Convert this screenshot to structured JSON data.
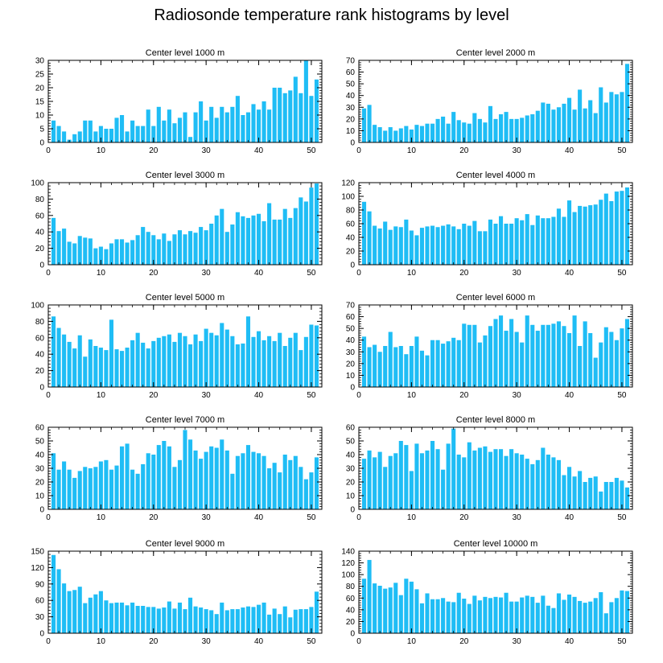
{
  "title": "Radiosonde temperature rank histograms by level",
  "bar_color": "#1fbdf5",
  "chart_data": [
    {
      "type": "bar",
      "title": "Center level 1000 m",
      "xlabel": "",
      "ylabel": "",
      "xlim": [
        0,
        52
      ],
      "ylim": [
        0,
        30
      ],
      "xticks": [
        0,
        10,
        20,
        30,
        40,
        50
      ],
      "yticks": [
        0,
        5,
        10,
        15,
        20,
        25,
        30
      ],
      "values": [
        8,
        6,
        4,
        1,
        3,
        4,
        8,
        8,
        4,
        6,
        5,
        5,
        9,
        10,
        4,
        8,
        6,
        6,
        12,
        6,
        13,
        8,
        12,
        7,
        9,
        11,
        2,
        11,
        15,
        8,
        13,
        9,
        13,
        11,
        13,
        17,
        10,
        11,
        14,
        12,
        15,
        12,
        20,
        20,
        18,
        19,
        24,
        18,
        30,
        17,
        23
      ]
    },
    {
      "type": "bar",
      "title": "Center level 2000 m",
      "xlabel": "",
      "ylabel": "",
      "xlim": [
        0,
        52
      ],
      "ylim": [
        0,
        70
      ],
      "xticks": [
        0,
        10,
        20,
        30,
        40,
        50
      ],
      "yticks": [
        0,
        10,
        20,
        30,
        40,
        50,
        60,
        70
      ],
      "values": [
        29,
        32,
        15,
        13,
        10,
        13,
        10,
        12,
        14,
        11,
        15,
        14,
        16,
        16,
        20,
        22,
        16,
        26,
        19,
        17,
        16,
        25,
        20,
        17,
        31,
        20,
        24,
        26,
        20,
        20,
        21,
        23,
        24,
        27,
        34,
        33,
        28,
        30,
        33,
        38,
        28,
        45,
        29,
        36,
        25,
        47,
        34,
        43,
        41,
        43,
        67
      ]
    },
    {
      "type": "bar",
      "title": "Center level 3000 m",
      "xlabel": "",
      "ylabel": "",
      "xlim": [
        0,
        52
      ],
      "ylim": [
        0,
        100
      ],
      "xticks": [
        0,
        10,
        20,
        30,
        40,
        50
      ],
      "yticks": [
        0,
        20,
        40,
        60,
        80,
        100
      ],
      "values": [
        57,
        41,
        44,
        28,
        26,
        35,
        33,
        32,
        20,
        22,
        19,
        26,
        31,
        31,
        27,
        30,
        36,
        46,
        40,
        36,
        31,
        38,
        29,
        37,
        42,
        37,
        41,
        39,
        46,
        42,
        50,
        60,
        68,
        40,
        49,
        64,
        59,
        57,
        60,
        62,
        53,
        75,
        55,
        55,
        68,
        57,
        69,
        82,
        77,
        94,
        99
      ]
    },
    {
      "type": "bar",
      "title": "Center level 4000 m",
      "xlabel": "",
      "ylabel": "",
      "xlim": [
        0,
        52
      ],
      "ylim": [
        0,
        120
      ],
      "xticks": [
        0,
        10,
        20,
        30,
        40,
        50
      ],
      "yticks": [
        0,
        20,
        40,
        60,
        80,
        100,
        120
      ],
      "values": [
        92,
        78,
        57,
        53,
        63,
        51,
        56,
        55,
        66,
        50,
        43,
        54,
        56,
        57,
        55,
        57,
        59,
        56,
        52,
        60,
        57,
        64,
        49,
        49,
        66,
        60,
        71,
        60,
        60,
        68,
        65,
        74,
        58,
        72,
        68,
        68,
        70,
        82,
        70,
        94,
        77,
        86,
        85,
        87,
        88,
        95,
        104,
        93,
        107,
        108,
        113
      ]
    },
    {
      "type": "bar",
      "title": "Center level 5000 m",
      "xlabel": "",
      "ylabel": "",
      "xlim": [
        0,
        52
      ],
      "ylim": [
        0,
        100
      ],
      "xticks": [
        0,
        10,
        20,
        30,
        40,
        50
      ],
      "yticks": [
        0,
        20,
        40,
        60,
        80,
        100
      ],
      "values": [
        86,
        72,
        64,
        55,
        47,
        63,
        37,
        58,
        50,
        48,
        45,
        82,
        46,
        44,
        48,
        57,
        66,
        54,
        47,
        56,
        60,
        62,
        64,
        55,
        66,
        62,
        52,
        64,
        56,
        71,
        66,
        63,
        78,
        70,
        62,
        52,
        53,
        86,
        61,
        68,
        57,
        62,
        56,
        66,
        50,
        60,
        66,
        45,
        61,
        76,
        75
      ]
    },
    {
      "type": "bar",
      "title": "Center level 6000 m",
      "xlabel": "",
      "ylabel": "",
      "xlim": [
        0,
        52
      ],
      "ylim": [
        0,
        70
      ],
      "xticks": [
        0,
        10,
        20,
        30,
        40,
        50
      ],
      "yticks": [
        0,
        10,
        20,
        30,
        40,
        50,
        60,
        70
      ],
      "values": [
        43,
        34,
        36,
        30,
        35,
        47,
        34,
        35,
        28,
        35,
        43,
        31,
        27,
        40,
        40,
        37,
        39,
        42,
        40,
        54,
        53,
        53,
        38,
        44,
        52,
        58,
        61,
        48,
        58,
        47,
        38,
        61,
        53,
        48,
        53,
        53,
        54,
        56,
        52,
        46,
        61,
        35,
        56,
        46,
        25,
        38,
        51,
        47,
        40,
        50,
        58
      ]
    },
    {
      "type": "bar",
      "title": "Center level 7000 m",
      "xlabel": "",
      "ylabel": "",
      "xlim": [
        0,
        52
      ],
      "ylim": [
        0,
        60
      ],
      "xticks": [
        0,
        10,
        20,
        30,
        40,
        50
      ],
      "yticks": [
        0,
        10,
        20,
        30,
        40,
        50,
        60
      ],
      "values": [
        41,
        29,
        35,
        29,
        23,
        28,
        31,
        30,
        31,
        35,
        36,
        29,
        32,
        46,
        48,
        29,
        26,
        33,
        41,
        40,
        47,
        50,
        46,
        31,
        36,
        58,
        51,
        43,
        37,
        42,
        46,
        45,
        51,
        43,
        26,
        39,
        41,
        47,
        42,
        41,
        39,
        30,
        34,
        27,
        40,
        36,
        39,
        31,
        22,
        27,
        38
      ]
    },
    {
      "type": "bar",
      "title": "Center level 8000 m",
      "xlabel": "",
      "ylabel": "",
      "xlim": [
        0,
        52
      ],
      "ylim": [
        0,
        60
      ],
      "xticks": [
        0,
        10,
        20,
        30,
        40,
        50
      ],
      "yticks": [
        0,
        10,
        20,
        30,
        40,
        50,
        60
      ],
      "values": [
        37,
        43,
        38,
        42,
        31,
        39,
        41,
        50,
        47,
        28,
        48,
        41,
        43,
        50,
        44,
        29,
        48,
        59,
        40,
        38,
        49,
        43,
        45,
        46,
        42,
        44,
        44,
        39,
        44,
        41,
        40,
        37,
        33,
        36,
        45,
        40,
        38,
        36,
        25,
        31,
        24,
        28,
        20,
        23,
        24,
        13,
        20,
        20,
        23,
        21,
        16
      ]
    },
    {
      "type": "bar",
      "title": "Center level 9000 m",
      "xlabel": "",
      "ylabel": "",
      "xlim": [
        0,
        52
      ],
      "ylim": [
        0,
        150
      ],
      "xticks": [
        0,
        10,
        20,
        30,
        40,
        50
      ],
      "yticks": [
        0,
        30,
        60,
        90,
        120,
        150
      ],
      "values": [
        143,
        117,
        91,
        77,
        79,
        85,
        55,
        65,
        71,
        77,
        60,
        55,
        56,
        56,
        51,
        56,
        50,
        50,
        48,
        48,
        45,
        47,
        58,
        45,
        56,
        44,
        65,
        49,
        47,
        44,
        42,
        35,
        56,
        42,
        44,
        44,
        47,
        49,
        48,
        52,
        56,
        34,
        45,
        35,
        49,
        29,
        43,
        44,
        44,
        48,
        76
      ]
    },
    {
      "type": "bar",
      "title": "Center level 10000 m",
      "xlabel": "",
      "ylabel": "",
      "xlim": [
        0,
        52
      ],
      "ylim": [
        0,
        140
      ],
      "xticks": [
        0,
        10,
        20,
        30,
        40,
        50
      ],
      "yticks": [
        0,
        20,
        40,
        60,
        80,
        100,
        120,
        140
      ],
      "values": [
        93,
        125,
        85,
        81,
        76,
        78,
        86,
        65,
        93,
        88,
        75,
        51,
        68,
        58,
        58,
        60,
        54,
        53,
        69,
        59,
        50,
        64,
        56,
        62,
        60,
        62,
        61,
        69,
        54,
        54,
        61,
        64,
        62,
        52,
        64,
        47,
        43,
        68,
        57,
        66,
        62,
        55,
        52,
        54,
        60,
        70,
        34,
        53,
        60,
        73,
        72
      ]
    }
  ]
}
